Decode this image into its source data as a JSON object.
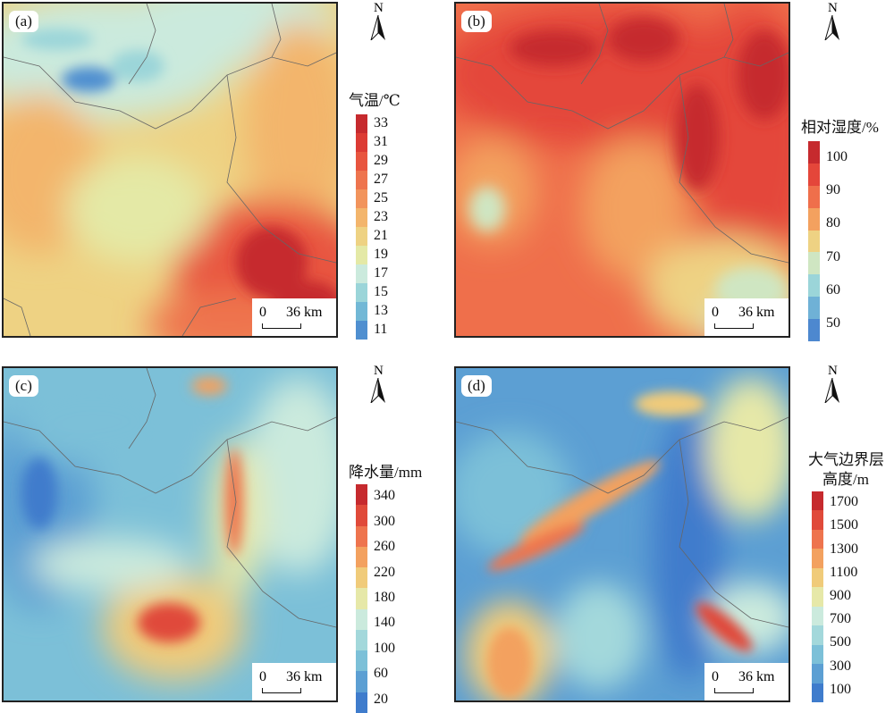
{
  "panels": [
    {
      "label": "(a)",
      "north": "N",
      "scale_start": "0",
      "scale_end": "36 km",
      "legend_title": [
        "气温/℃"
      ],
      "legend_ticks": [
        "33",
        "31",
        "29",
        "27",
        "25",
        "23",
        "21",
        "19",
        "17",
        "15",
        "13",
        "11"
      ],
      "colors": [
        "#c62a2e",
        "#dc3b34",
        "#e8553f",
        "#ee744e",
        "#f2945c",
        "#f3b56c",
        "#eed283",
        "#e4e9a6",
        "#cbeadd",
        "#9bd5d9",
        "#72b8d6",
        "#4f8fd0"
      ]
    },
    {
      "label": "(b)",
      "north": "N",
      "scale_start": "0",
      "scale_end": "36 km",
      "legend_title": [
        "相对湿度/%"
      ],
      "legend_ticks": [
        "100",
        "90",
        "80",
        "70",
        "60",
        "50"
      ],
      "colors": [
        "#c62a2e",
        "#e4463a",
        "#ef6f4b",
        "#f3a15f",
        "#eed283",
        "#cfe6c2",
        "#9bd5d9",
        "#6fb1d6",
        "#4d88cf"
      ]
    },
    {
      "label": "(c)",
      "north": "N",
      "scale_start": "0",
      "scale_end": "36 km",
      "legend_title": [
        "降水量/mm"
      ],
      "legend_ticks": [
        "340",
        "300",
        "260",
        "220",
        "180",
        "140",
        "100",
        "60",
        "20"
      ],
      "colors": [
        "#c62a2e",
        "#e04a3a",
        "#ee744e",
        "#f3a15f",
        "#f0cb7a",
        "#e6e8a8",
        "#cbeadd",
        "#a3d8db",
        "#7cc0d8",
        "#5c9fd3",
        "#3f7ccc"
      ]
    },
    {
      "label": "(d)",
      "north": "N",
      "scale_start": "0",
      "scale_end": "36 km",
      "legend_title": [
        "大气边界层",
        "高度/m"
      ],
      "legend_ticks": [
        "1700",
        "1500",
        "1300",
        "1100",
        "900",
        "700",
        "500",
        "300",
        "100"
      ],
      "colors": [
        "#c62a2e",
        "#e04a3a",
        "#ee744e",
        "#f3a15f",
        "#f0cb7a",
        "#e6e8a8",
        "#cbeadd",
        "#a3d8db",
        "#7cc0d8",
        "#5c9fd3",
        "#3f7ccc"
      ]
    }
  ]
}
